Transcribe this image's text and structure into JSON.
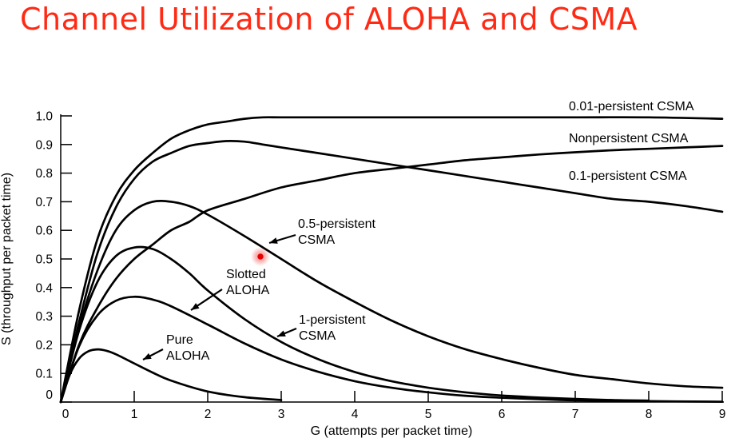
{
  "slide": {
    "title": "Channel Utilization of ALOHA and CSMA",
    "title_color": "#ff2a14"
  },
  "pointer": {
    "kind": "cursor-dot",
    "color": "#e60000"
  },
  "chart_data": {
    "type": "line",
    "title": "",
    "xlabel": "G (attempts per packet time)",
    "ylabel": "S (throughput per packet time)",
    "xlim": [
      0,
      9
    ],
    "ylim": [
      0,
      1.0
    ],
    "x_ticks": [
      0,
      1,
      2,
      3,
      4,
      5,
      6,
      7,
      8,
      9
    ],
    "y_ticks": [
      0,
      0.1,
      0.2,
      0.3,
      0.4,
      0.5,
      0.6,
      0.7,
      0.8,
      0.9,
      1.0
    ],
    "x_tick_labels": [
      "0",
      "1",
      "2",
      "3",
      "4",
      "5",
      "6",
      "7",
      "8",
      "9"
    ],
    "y_tick_labels": [
      "0",
      "0.1",
      "0.2",
      "0.3",
      "0.4",
      "0.5",
      "0.6",
      "0.7",
      "0.8",
      "0.9",
      "1.0"
    ],
    "grid": false,
    "series": [
      {
        "name": "0.01-persistent CSMA",
        "label_lines": [
          "0.01-persistent CSMA"
        ],
        "x": [
          0,
          0.25,
          0.5,
          0.75,
          1,
          1.25,
          1.5,
          1.75,
          2,
          2.25,
          2.5,
          2.75,
          3,
          3.5,
          4,
          5,
          6,
          7,
          8,
          9
        ],
        "y": [
          0,
          0.32,
          0.57,
          0.72,
          0.81,
          0.87,
          0.92,
          0.95,
          0.97,
          0.98,
          0.99,
          0.995,
          0.995,
          0.995,
          0.995,
          0.995,
          0.995,
          0.995,
          0.995,
          0.99
        ]
      },
      {
        "name": "Nonpersistent CSMA",
        "label_lines": [
          "Nonpersistent CSMA"
        ],
        "x": [
          0,
          0.25,
          0.5,
          0.75,
          1,
          1.25,
          1.5,
          1.75,
          2,
          2.5,
          3,
          3.5,
          4,
          4.5,
          5,
          5.5,
          6,
          6.5,
          7,
          7.5,
          8,
          8.5,
          9
        ],
        "y": [
          0,
          0.2,
          0.33,
          0.43,
          0.5,
          0.55,
          0.6,
          0.63,
          0.67,
          0.71,
          0.75,
          0.775,
          0.8,
          0.815,
          0.83,
          0.845,
          0.855,
          0.865,
          0.873,
          0.88,
          0.885,
          0.89,
          0.895
        ]
      },
      {
        "name": "0.1-persistent CSMA",
        "label_lines": [
          "0.1-persistent CSMA"
        ],
        "x": [
          0,
          0.25,
          0.5,
          0.75,
          1,
          1.25,
          1.5,
          1.75,
          2,
          2.25,
          2.5,
          2.75,
          3,
          3.5,
          4,
          4.5,
          5,
          5.5,
          6,
          6.5,
          7,
          7.5,
          8,
          8.5,
          9
        ],
        "y": [
          0,
          0.28,
          0.52,
          0.68,
          0.78,
          0.84,
          0.87,
          0.895,
          0.905,
          0.912,
          0.91,
          0.9,
          0.89,
          0.87,
          0.85,
          0.83,
          0.81,
          0.79,
          0.77,
          0.75,
          0.73,
          0.71,
          0.7,
          0.685,
          0.665
        ]
      },
      {
        "name": "0.5-persistent CSMA",
        "label_lines": [
          "0.5-persistent",
          "CSMA"
        ],
        "x": [
          0,
          0.25,
          0.5,
          0.75,
          1,
          1.25,
          1.5,
          1.75,
          2,
          2.5,
          3,
          3.5,
          4,
          4.5,
          5,
          5.5,
          6,
          6.5,
          7,
          7.5,
          8,
          8.5,
          9
        ],
        "y": [
          0,
          0.26,
          0.46,
          0.6,
          0.67,
          0.7,
          0.7,
          0.685,
          0.655,
          0.58,
          0.5,
          0.42,
          0.35,
          0.285,
          0.23,
          0.185,
          0.15,
          0.12,
          0.095,
          0.08,
          0.065,
          0.055,
          0.05
        ]
      },
      {
        "name": "Slotted ALOHA",
        "label_lines": [
          "Slotted",
          "ALOHA"
        ],
        "x": [
          0,
          0.25,
          0.5,
          0.75,
          1,
          1.25,
          1.5,
          2,
          2.5,
          3,
          3.5,
          4,
          4.5,
          5,
          5.5,
          6,
          6.5,
          7,
          8,
          9
        ],
        "y": [
          0,
          0.195,
          0.303,
          0.354,
          0.368,
          0.358,
          0.335,
          0.271,
          0.205,
          0.149,
          0.106,
          0.073,
          0.05,
          0.034,
          0.022,
          0.015,
          0.01,
          0.006,
          0.003,
          0.001
        ]
      },
      {
        "name": "1-persistent CSMA",
        "label_lines": [
          "1-persistent",
          "CSMA"
        ],
        "x": [
          0,
          0.25,
          0.5,
          0.75,
          1,
          1.25,
          1.5,
          1.75,
          2,
          2.5,
          3,
          3.5,
          4,
          4.5,
          5,
          5.5,
          6,
          6.5,
          7,
          7.5,
          8
        ],
        "y": [
          0,
          0.25,
          0.42,
          0.51,
          0.54,
          0.535,
          0.5,
          0.45,
          0.39,
          0.29,
          0.21,
          0.15,
          0.105,
          0.073,
          0.05,
          0.034,
          0.023,
          0.016,
          0.011,
          0.007,
          0.005
        ]
      },
      {
        "name": "Pure ALOHA",
        "label_lines": [
          "Pure",
          "ALOHA"
        ],
        "x": [
          0,
          0.125,
          0.25,
          0.375,
          0.5,
          0.625,
          0.75,
          1,
          1.25,
          1.5,
          2,
          2.5,
          3
        ],
        "y": [
          0,
          0.097,
          0.152,
          0.177,
          0.184,
          0.179,
          0.167,
          0.135,
          0.103,
          0.075,
          0.037,
          0.017,
          0.007
        ]
      }
    ]
  }
}
